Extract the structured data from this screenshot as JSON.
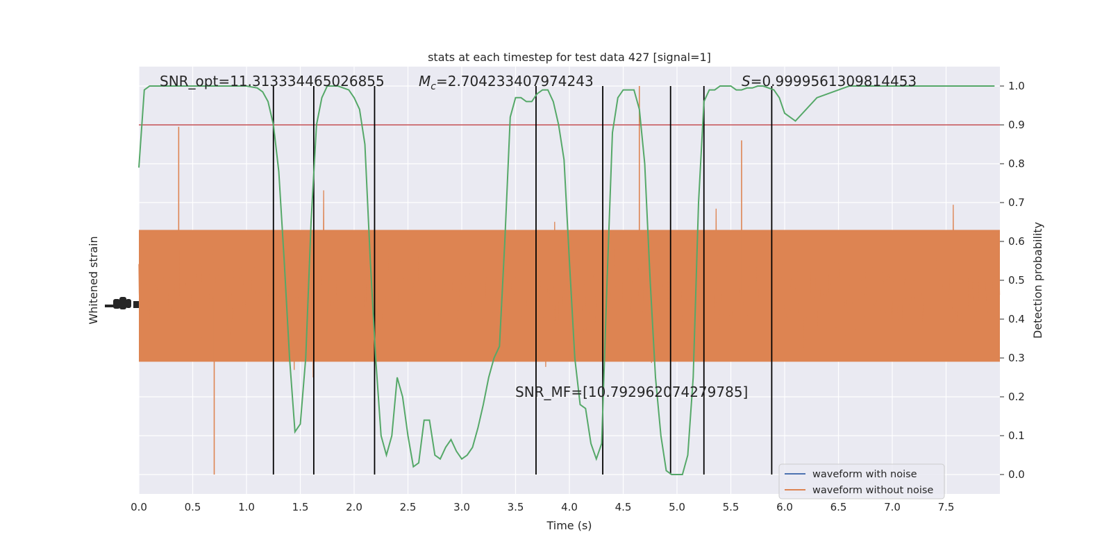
{
  "chart_data": {
    "type": "line",
    "title": "stats at each timestep for test data 427 [signal=1]",
    "xlabel": "Time (s)",
    "ylabel_left": "Whitened strain",
    "ylabel_right": "Detection probability",
    "xlim": [
      0.0,
      8.0
    ],
    "ylim_right": [
      -0.05,
      1.05
    ],
    "grid": true,
    "x_ticks": [
      "0.0",
      "0.5",
      "1.0",
      "1.5",
      "2.0",
      "2.5",
      "3.0",
      "3.5",
      "4.0",
      "4.5",
      "5.0",
      "5.5",
      "6.0",
      "6.5",
      "7.0",
      "7.5"
    ],
    "y_right_ticks": [
      "0.0",
      "0.1",
      "0.2",
      "0.3",
      "0.4",
      "0.5",
      "0.6",
      "0.7",
      "0.8",
      "0.9",
      "1.0"
    ],
    "threshold": 0.9,
    "vertical_lines": [
      1.25,
      1.625,
      2.19,
      3.69,
      4.31,
      4.94,
      5.25,
      5.88
    ],
    "annotations": {
      "snr_opt": "SNR_opt=11.313334465026855",
      "mc_symbol": "M",
      "mc_sub": "c",
      "mc_value": "=2.704233407974243",
      "s_symbol": "S",
      "s_value": "=0.9999561309814453",
      "snr_mf": "SNR_MF=[10.792962074279785]"
    },
    "series": [
      {
        "name": "waveform with noise",
        "color": "#4c72b0"
      },
      {
        "name": "waveform without noise",
        "color": "#dd8452"
      }
    ],
    "probability": {
      "color": "#55a868",
      "x": [
        0.0,
        0.05,
        0.1,
        0.2,
        0.4,
        0.6,
        0.8,
        1.0,
        1.1,
        1.15,
        1.2,
        1.25,
        1.3,
        1.35,
        1.4,
        1.45,
        1.5,
        1.55,
        1.6,
        1.65,
        1.7,
        1.75,
        1.8,
        1.85,
        1.9,
        1.95,
        2.0,
        2.05,
        2.1,
        2.15,
        2.2,
        2.25,
        2.3,
        2.35,
        2.4,
        2.45,
        2.5,
        2.55,
        2.6,
        2.65,
        2.7,
        2.75,
        2.8,
        2.85,
        2.9,
        2.95,
        3.0,
        3.05,
        3.1,
        3.15,
        3.2,
        3.25,
        3.3,
        3.35,
        3.4,
        3.45,
        3.5,
        3.55,
        3.6,
        3.65,
        3.7,
        3.75,
        3.8,
        3.85,
        3.9,
        3.95,
        4.0,
        4.05,
        4.1,
        4.15,
        4.2,
        4.25,
        4.3,
        4.35,
        4.4,
        4.45,
        4.5,
        4.55,
        4.6,
        4.65,
        4.7,
        4.75,
        4.8,
        4.85,
        4.9,
        4.95,
        5.0,
        5.05,
        5.1,
        5.15,
        5.2,
        5.25,
        5.3,
        5.35,
        5.4,
        5.45,
        5.5,
        5.55,
        5.6,
        5.65,
        5.7,
        5.75,
        5.8,
        5.85,
        5.9,
        5.95,
        6.0,
        6.1,
        6.3,
        6.6,
        6.8,
        7.0,
        7.2,
        7.3,
        7.35,
        7.4,
        7.45,
        7.5,
        7.55,
        7.6,
        7.65,
        7.7,
        7.8,
        7.95
      ],
      "y": [
        0.79,
        0.99,
        1.0,
        1.0,
        1.0,
        1.0,
        1.0,
        1.0,
        0.995,
        0.985,
        0.96,
        0.9,
        0.78,
        0.55,
        0.3,
        0.11,
        0.13,
        0.3,
        0.65,
        0.9,
        0.97,
        1.0,
        1.0,
        1.0,
        0.995,
        0.99,
        0.97,
        0.94,
        0.85,
        0.55,
        0.3,
        0.1,
        0.05,
        0.1,
        0.25,
        0.2,
        0.1,
        0.02,
        0.03,
        0.14,
        0.14,
        0.05,
        0.04,
        0.07,
        0.09,
        0.06,
        0.04,
        0.05,
        0.07,
        0.12,
        0.18,
        0.25,
        0.3,
        0.33,
        0.6,
        0.92,
        0.97,
        0.97,
        0.96,
        0.96,
        0.98,
        0.99,
        0.99,
        0.96,
        0.9,
        0.81,
        0.55,
        0.3,
        0.18,
        0.17,
        0.08,
        0.04,
        0.08,
        0.5,
        0.88,
        0.97,
        0.99,
        0.99,
        0.99,
        0.94,
        0.8,
        0.5,
        0.25,
        0.1,
        0.01,
        0.0,
        0.0,
        0.0,
        0.05,
        0.25,
        0.7,
        0.96,
        0.99,
        0.99,
        1.0,
        1.0,
        1.0,
        0.99,
        0.99,
        0.995,
        0.995,
        1.0,
        1.0,
        0.995,
        0.99,
        0.97,
        0.93,
        0.91,
        0.97,
        1.0,
        1.0,
        1.0,
        1.0,
        1.0,
        1.0,
        1.0,
        1.0,
        1.0,
        1.0,
        1.0,
        1.0,
        1.0,
        1.0,
        1.0
      ]
    }
  }
}
